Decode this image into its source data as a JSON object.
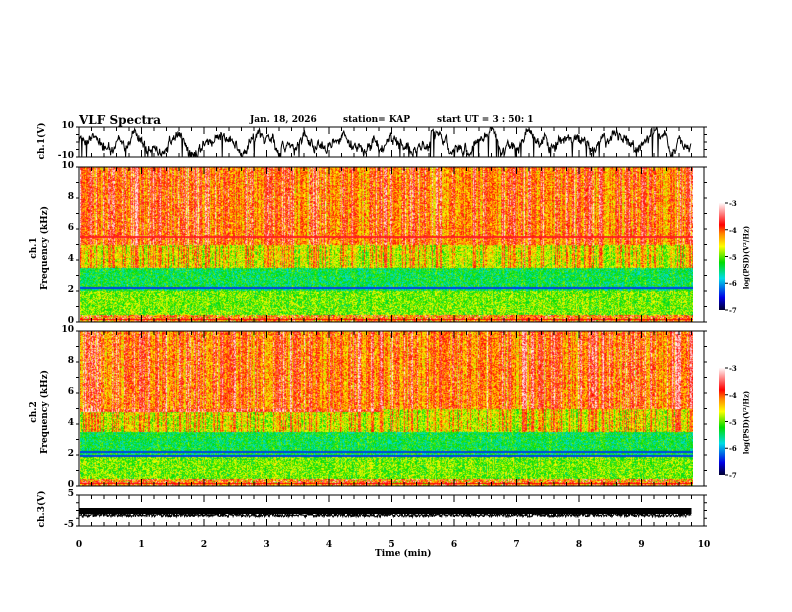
{
  "header": {
    "title": "VLF Spectra",
    "date": "Jan. 18, 2026",
    "station": "station= KAP",
    "start": "start  UT =  3 : 50: 1"
  },
  "chart_data": [
    {
      "type": "line",
      "name": "ch1-waveform",
      "ylabel": "ch.1(V)",
      "ylim": [
        -10,
        10
      ],
      "ytick_labels": [
        "10",
        "-10"
      ],
      "xlim": [
        0,
        10
      ],
      "description_values": "noisy waveform oscillating roughly between -8 and 8 V"
    },
    {
      "type": "heatmap",
      "name": "ch1-spectrogram",
      "ylabel": "ch.1\nFrequency (kHz)",
      "ylim": [
        0,
        10
      ],
      "ytick_labels": [
        "0",
        "2",
        "4",
        "6",
        "8",
        "10"
      ],
      "xlim": [
        0,
        9.8
      ],
      "colorbar": {
        "label": "log(PSD)(V²/Hz)",
        "range": [
          -7,
          -3
        ],
        "tick_labels": [
          "-3",
          "-4",
          "-5",
          "-6",
          "-7"
        ]
      }
    },
    {
      "type": "heatmap",
      "name": "ch2-spectrogram",
      "ylabel": "ch.2\nFrequency (kHz)",
      "ylim": [
        0,
        10
      ],
      "ytick_labels": [
        "0",
        "2",
        "4",
        "6",
        "8",
        "10"
      ],
      "xlim": [
        0,
        9.8
      ],
      "colorbar": {
        "label": "log(PSD)(V²/Hz)",
        "range": [
          -7,
          -3
        ],
        "tick_labels": [
          "-3",
          "-4",
          "-5",
          "-6",
          "-7"
        ]
      }
    },
    {
      "type": "line",
      "name": "ch3-waveform",
      "ylabel": "ch.3(V)",
      "ylim": [
        -5,
        5
      ],
      "ytick_labels": [
        "5",
        "-5"
      ],
      "xlim": [
        0,
        10
      ],
      "description_values": "near-constant signal around -1.5 V"
    }
  ],
  "xaxis": {
    "label": "Time (min)",
    "tick_labels": [
      "0",
      "1",
      "2",
      "3",
      "4",
      "5",
      "6",
      "7",
      "8",
      "9",
      "10"
    ]
  },
  "colors": {
    "line": "#000000"
  }
}
